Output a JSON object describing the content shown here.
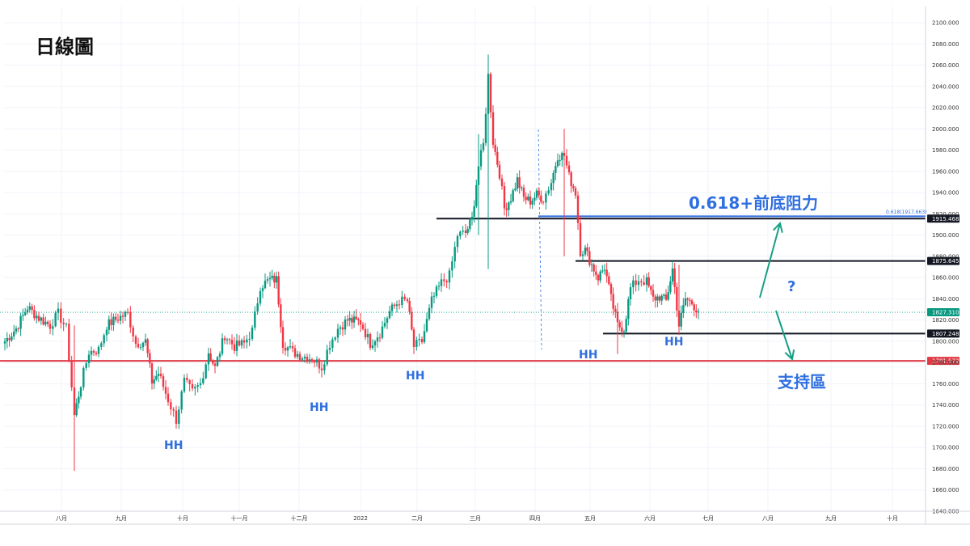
{
  "chart_data": {
    "type": "candlestick",
    "title": "日線圖",
    "y_range": [
      1640,
      2100
    ],
    "y_ticks": [
      "2100.000",
      "2080.000",
      "2060.000",
      "2040.000",
      "2020.000",
      "2000.000",
      "1980.000",
      "1960.000",
      "1940.000",
      "1920.000",
      "1900.000",
      "1880.000",
      "1860.000",
      "1840.000",
      "1820.000",
      "1800.000",
      "1780.000",
      "1760.000",
      "1740.000",
      "1720.000",
      "1700.000",
      "1680.000",
      "1660.000",
      "1640.000"
    ],
    "x_labels": [
      "八月",
      "九月",
      "十月",
      "十一月",
      "十二月",
      "2022",
      "二月",
      "三月",
      "四月",
      "五月",
      "六月",
      "七月",
      "八月",
      "九月",
      "十月"
    ],
    "price_levels": [
      {
        "value": 1915.468,
        "label": "1915.468",
        "color": "#131722"
      },
      {
        "value": 1875.645,
        "label": "1875.645",
        "color": "#131722"
      },
      {
        "value": 1827.31,
        "label": "1827.310",
        "color": "#089981"
      },
      {
        "value": 1807.248,
        "label": "1807.248",
        "color": "#131722"
      },
      {
        "value": 1781.572,
        "label": "1781.572",
        "color": "#e03a45"
      }
    ],
    "fib_label": "0.618(1917.663)",
    "fib_value": 1917.663,
    "annotations": {
      "resistance": "0.618+前底阻力",
      "question": "?",
      "support": "支持區",
      "hh": [
        "HH",
        "HH",
        "HH",
        "HH",
        "HH"
      ]
    },
    "colors": {
      "up": "#089981",
      "down": "#f23645",
      "support": "#e03a45",
      "fib": "#2f6fe0",
      "annotation": "#2f6fe0",
      "arrow": "#16a085"
    }
  }
}
